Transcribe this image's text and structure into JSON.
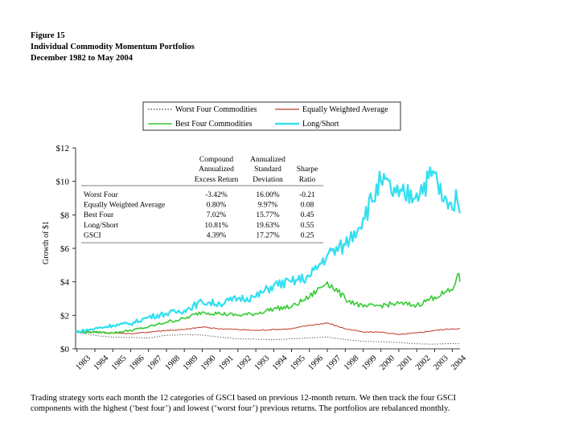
{
  "figure": {
    "label": "Figure 15",
    "title": "Individual Commodity Momentum Portfolios",
    "period": "December 1982 to May 2004"
  },
  "caption": "Trading strategy sorts each month the 12 categories of GSCI based on previous 12-month return. We then track the four GSCI components with the highest (‘best four’) and lowest (‘worst four’) previous returns. The portfolios are rebalanced monthly.",
  "colors": {
    "worst_four": "#444444",
    "equal_weight": "#c0392b",
    "best_four": "#33cc33",
    "long_short": "#33e0f0"
  },
  "chart_data": {
    "type": "line",
    "title": "",
    "xlabel": "",
    "ylabel": "Growth of $1",
    "ylim": [
      0,
      12
    ],
    "yticks": [
      0,
      2,
      4,
      6,
      8,
      10,
      12
    ],
    "ytick_labels": [
      "$0",
      "$2",
      "$4",
      "$6",
      "$8",
      "$10",
      "$12"
    ],
    "x_range": [
      1982.92,
      2004.42
    ],
    "xtick_labels": [
      "1983",
      "1984",
      "1985",
      "1986",
      "1987",
      "1988",
      "1989",
      "1990",
      "1991",
      "1992",
      "1993",
      "1994",
      "1995",
      "1996",
      "1997",
      "1998",
      "1999",
      "2000",
      "2001",
      "2002",
      "2003",
      "2004"
    ],
    "legend_position": "top",
    "legend": [
      {
        "label": "Worst Four Commodities",
        "key": "worst_four"
      },
      {
        "label": "Equally Weighted Average",
        "key": "equal_weight"
      },
      {
        "label": "Best Four Commodities",
        "key": "best_four"
      },
      {
        "label": "Long/Short",
        "key": "long_short"
      }
    ],
    "series": [
      {
        "name": "Worst Four Commodities",
        "key": "worst_four",
        "x": [
          1982.92,
          1984,
          1985,
          1986,
          1987,
          1988,
          1989,
          1990,
          1991,
          1992,
          1993,
          1994,
          1995,
          1996,
          1997,
          1998,
          1999,
          2000,
          2001,
          2002,
          2003,
          2004,
          2004.42
        ],
        "y": [
          1.0,
          0.8,
          0.7,
          0.68,
          0.65,
          0.8,
          0.85,
          0.82,
          0.7,
          0.6,
          0.58,
          0.55,
          0.6,
          0.65,
          0.7,
          0.55,
          0.45,
          0.42,
          0.38,
          0.3,
          0.28,
          0.32,
          0.3
        ]
      },
      {
        "name": "Equally Weighted Average",
        "key": "equal_weight",
        "x": [
          1982.92,
          1984,
          1985,
          1986,
          1987,
          1988,
          1989,
          1990,
          1991,
          1992,
          1993,
          1994,
          1995,
          1996,
          1997,
          1998,
          1999,
          2000,
          2001,
          2002,
          2003,
          2004,
          2004.42
        ],
        "y": [
          1.0,
          1.0,
          0.95,
          0.9,
          1.0,
          1.1,
          1.15,
          1.3,
          1.2,
          1.15,
          1.1,
          1.15,
          1.2,
          1.4,
          1.55,
          1.2,
          1.0,
          1.0,
          0.85,
          0.95,
          1.1,
          1.2,
          1.2
        ]
      },
      {
        "name": "Best Four Commodities",
        "key": "best_four",
        "x": [
          1982.92,
          1984,
          1985,
          1986,
          1987,
          1988,
          1989,
          1990,
          1991,
          1992,
          1993,
          1994,
          1995,
          1996,
          1997,
          1998,
          1999,
          2000,
          2001,
          2002,
          2003,
          2004,
          2004.3,
          2004.42
        ],
        "y": [
          1.0,
          1.0,
          0.95,
          1.1,
          1.3,
          1.6,
          1.8,
          2.2,
          2.1,
          2.0,
          2.1,
          2.4,
          2.5,
          3.1,
          4.0,
          3.0,
          2.5,
          2.6,
          2.7,
          2.6,
          3.1,
          3.5,
          4.5,
          4.0
        ]
      },
      {
        "name": "Long/Short",
        "key": "long_short",
        "x": [
          1982.92,
          1984,
          1985,
          1986,
          1987,
          1988,
          1989,
          1990,
          1991,
          1992,
          1993,
          1994,
          1995,
          1996,
          1997,
          1998,
          1999,
          2000,
          2001,
          2002,
          2003,
          2003.5,
          2004,
          2004.2,
          2004.42
        ],
        "y": [
          1.0,
          1.2,
          1.4,
          1.5,
          1.9,
          2.1,
          2.3,
          2.8,
          2.7,
          3.0,
          3.1,
          3.8,
          4.0,
          4.3,
          5.6,
          6.2,
          7.8,
          10.0,
          9.1,
          9.3,
          10.5,
          8.8,
          8.3,
          9.5,
          8.1
        ]
      }
    ],
    "table": {
      "headers": [
        "Compound Annualized Excess Return",
        "Annualized Standard Deviation",
        "Sharpe Ratio"
      ],
      "rows": [
        {
          "label": "Worst Four",
          "values": [
            "-3.42%",
            "16.00%",
            "-0.21"
          ]
        },
        {
          "label": "Equally Weighted Average",
          "values": [
            "0.80%",
            "9.97%",
            "0.08"
          ]
        },
        {
          "label": "Best Four",
          "values": [
            "7.02%",
            "15.77%",
            "0.45"
          ]
        },
        {
          "label": "Long/Short",
          "values": [
            "10.81%",
            "19.63%",
            "0.55"
          ]
        },
        {
          "label": "GSCI",
          "values": [
            "4.39%",
            "17.27%",
            "0.25"
          ]
        }
      ]
    }
  }
}
